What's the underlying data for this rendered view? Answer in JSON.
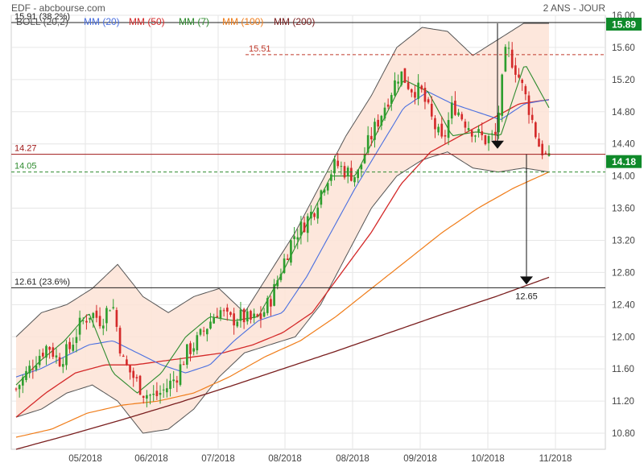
{
  "header": {
    "source": "EDF - abcbourse.com",
    "period": "2 ANS - JOUR"
  },
  "colors": {
    "candle_up": "#2e9e2e",
    "candle_down": "#d42a2a",
    "boll_band": "#555555",
    "boll_fill": "#fde3d6",
    "mm20": "#4a6fe0",
    "mm50": "#d42a2a",
    "mm7": "#2e8b2e",
    "mm100": "#f07d1a",
    "mm200": "#7a1f1f"
  },
  "chart_data": {
    "type": "candlestick",
    "title": "EDF - abcbourse.com",
    "period": "2 ANS - JOUR",
    "ylim": [
      10.6,
      16.0
    ],
    "y_ticks": [
      10.8,
      11.2,
      11.6,
      12.0,
      12.4,
      12.8,
      13.2,
      13.6,
      14.0,
      14.4,
      14.8,
      15.2,
      15.6,
      16.0
    ],
    "y_tick_labels": [
      "10.80",
      "11.20",
      "11.60",
      "12.00",
      "12.40",
      "12.80",
      "13.20",
      "13.60",
      "14.00",
      "14.40",
      "14.80",
      "15.20",
      "15.60",
      "16.00"
    ],
    "x_months": [
      "05/2018",
      "06/2018",
      "07/2018",
      "08/2018",
      "08/2018",
      "09/2018",
      "10/2018",
      "11/2018"
    ],
    "legend": [
      {
        "label": "BOLL (20,2)",
        "color_key": "boll_band"
      },
      {
        "label": "MM (20)",
        "color_key": "mm20"
      },
      {
        "label": "MM (50)",
        "color_key": "mm50"
      },
      {
        "label": "MM (7)",
        "color_key": "mm7"
      },
      {
        "label": "MM (100)",
        "color_key": "mm100"
      },
      {
        "label": "MM (200)",
        "color_key": "mm200"
      }
    ],
    "price_badges": [
      {
        "value": 15.89,
        "label": "15.89"
      },
      {
        "value": 14.18,
        "label": "14.18"
      }
    ],
    "levels": [
      {
        "value": 15.91,
        "label": "15.91  (38.2%)",
        "style": "solid",
        "color": "#222222"
      },
      {
        "value": 15.51,
        "label": "15.51",
        "style": "dashed",
        "color": "#c0392b"
      },
      {
        "value": 14.27,
        "label": "14.27",
        "style": "solid",
        "color": "#a01818"
      },
      {
        "value": 14.05,
        "label": "14.05",
        "style": "dashed",
        "color": "#2e8b2e"
      },
      {
        "value": 12.61,
        "label": "12.61  (23.6%)",
        "style": "solid",
        "color": "#222222"
      }
    ],
    "annotations": [
      {
        "type": "arrow_down",
        "label": "",
        "value": 14.4
      },
      {
        "type": "target_arrow",
        "label": "12.65",
        "value": 12.65
      }
    ],
    "close_keypoints": [
      11.35,
      11.55,
      11.75,
      11.9,
      11.7,
      11.85,
      12.15,
      12.3,
      12.2,
      12.45,
      11.7,
      11.5,
      11.3,
      11.25,
      11.35,
      11.5,
      11.8,
      11.95,
      12.15,
      12.35,
      12.2,
      12.25,
      12.2,
      12.25,
      12.5,
      12.9,
      13.25,
      13.4,
      13.6,
      13.95,
      14.15,
      14.05,
      14.0,
      14.4,
      14.7,
      15.0,
      15.3,
      15.1,
      15.05,
      14.7,
      14.4,
      14.9,
      14.7,
      14.55,
      14.45,
      14.5,
      15.6,
      15.3,
      14.9,
      14.4,
      14.18
    ],
    "bands_n": 190,
    "ma_keypoints": {
      "mm20": [
        11.5,
        11.6,
        11.75,
        11.9,
        11.95,
        11.8,
        11.65,
        11.55,
        11.65,
        11.95,
        12.2,
        12.3,
        12.75,
        13.3,
        13.85,
        14.35,
        14.85,
        15.05,
        14.9,
        14.8,
        14.7,
        14.9,
        14.95
      ],
      "mm50": [
        11.0,
        11.3,
        11.55,
        11.65,
        11.65,
        11.7,
        11.75,
        11.8,
        11.9,
        12.05,
        12.3,
        12.8,
        13.3,
        13.9,
        14.3,
        14.5,
        14.7,
        14.9,
        14.95
      ],
      "mm7": [
        11.4,
        11.7,
        11.95,
        12.3,
        11.55,
        11.3,
        11.55,
        12.0,
        12.25,
        12.2,
        12.25,
        12.8,
        13.4,
        14.0,
        14.0,
        14.6,
        15.2,
        15.05,
        14.5,
        14.55,
        14.5,
        15.4,
        14.85
      ],
      "mm100": [
        10.75,
        10.85,
        11.05,
        11.15,
        11.2,
        11.3,
        11.5,
        11.75,
        11.95,
        12.25,
        12.6,
        12.95,
        13.3,
        13.6,
        13.85,
        14.05
      ],
      "mm200": [
        10.6,
        10.78,
        10.97,
        11.17,
        11.38,
        11.6,
        11.82,
        12.05,
        12.28,
        12.5,
        12.74
      ],
      "boll_upper": [
        12.0,
        12.3,
        12.4,
        12.6,
        12.9,
        12.5,
        12.3,
        12.5,
        12.6,
        12.3,
        12.8,
        13.3,
        13.9,
        14.5,
        15.0,
        15.6,
        15.85,
        15.8,
        15.5,
        15.7,
        15.9,
        15.9
      ],
      "boll_lower": [
        11.0,
        11.1,
        11.3,
        11.4,
        11.2,
        10.8,
        10.85,
        11.1,
        11.5,
        11.8,
        11.9,
        12.0,
        12.4,
        13.0,
        13.6,
        14.0,
        14.2,
        14.3,
        14.1,
        14.05,
        14.1,
        14.05
      ]
    }
  }
}
